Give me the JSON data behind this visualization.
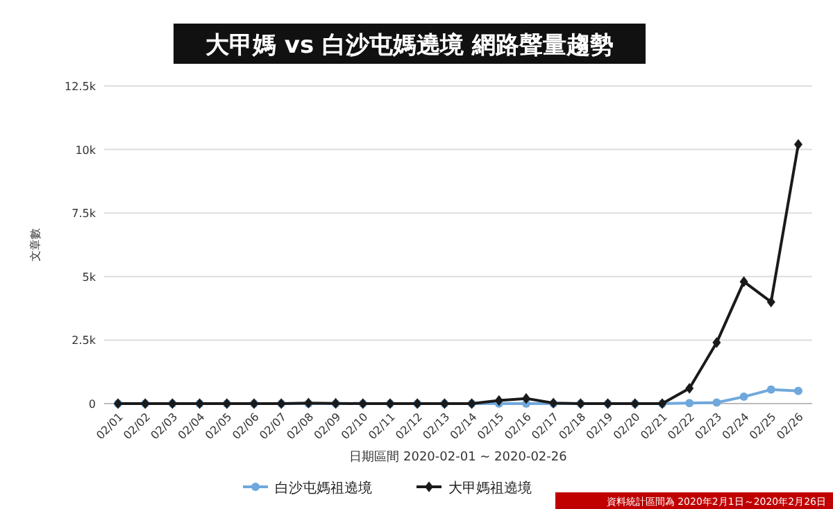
{
  "chart_data": {
    "type": "line",
    "title": "大甲媽 vs 白沙屯媽遶境 網路聲量趨勢",
    "xlabel": "日期區間 2020-02-01 ~ 2020-02-26",
    "ylabel": "文章數",
    "categories": [
      "02/01",
      "02/02",
      "02/03",
      "02/04",
      "02/05",
      "02/06",
      "02/07",
      "02/08",
      "02/09",
      "02/10",
      "02/11",
      "02/12",
      "02/13",
      "02/14",
      "02/15",
      "02/16",
      "02/17",
      "02/18",
      "02/19",
      "02/20",
      "02/21",
      "02/22",
      "02/23",
      "02/24",
      "02/25",
      "02/26"
    ],
    "series": [
      {
        "name": "白沙屯媽祖遶境",
        "color": "#6fa8dc",
        "marker": "circle",
        "values": [
          0,
          0,
          0,
          0,
          0,
          0,
          0,
          0,
          0,
          0,
          0,
          0,
          0,
          0,
          0,
          0,
          0,
          0,
          0,
          0,
          0,
          20,
          40,
          270,
          550,
          500
        ]
      },
      {
        "name": "大甲媽祖遶境",
        "color": "#1a1a1a",
        "marker": "diamond",
        "values": [
          0,
          0,
          0,
          0,
          0,
          0,
          0,
          20,
          10,
          0,
          0,
          0,
          0,
          0,
          120,
          200,
          20,
          0,
          0,
          0,
          0,
          600,
          2400,
          4800,
          4000,
          10200
        ]
      }
    ],
    "ylim": [
      0,
      12500
    ],
    "yticks": [
      0,
      {
        "value": 2500,
        "label": "2.5k"
      },
      {
        "value": 5000,
        "label": "5k"
      },
      {
        "value": 7500,
        "label": "7.5k"
      },
      {
        "value": 10000,
        "label": "10k"
      },
      {
        "value": 12500,
        "label": "12.5k"
      }
    ],
    "grid": "y",
    "legend": "bottom",
    "line_style": "solid",
    "annotations": [
      "資料統計區間為 2020年2月1日～2020年2月26日"
    ]
  }
}
